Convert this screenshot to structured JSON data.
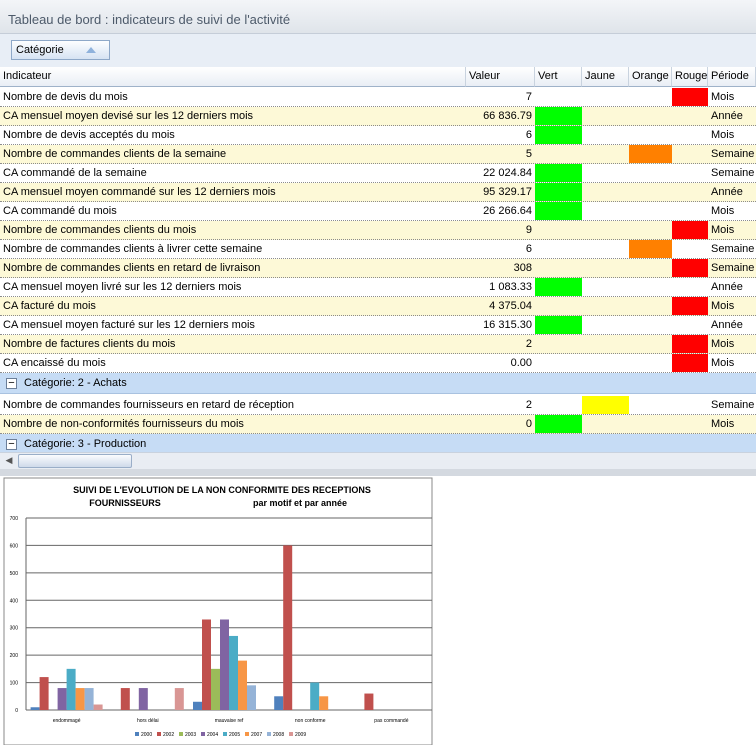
{
  "header": {
    "title": "Tableau de bord : indicateurs de suivi de l'activité"
  },
  "group_panel": {
    "button": "Catégorie"
  },
  "table": {
    "columns": [
      "Indicateur",
      "Valeur",
      "Vert",
      "Jaune",
      "Orange",
      "Rouge",
      "Période"
    ],
    "status_colors": {
      "Vert": "#00ff00",
      "Jaune": "#ffff00",
      "Orange": "#ff8000",
      "Rouge": "#ff0000"
    },
    "groups": [
      {
        "rows": [
          {
            "indicator": "Nombre de devis du mois",
            "value": "7",
            "status": "Rouge",
            "period": "Mois"
          },
          {
            "indicator": "CA mensuel moyen devisé sur les 12 derniers mois",
            "value": "66 836.79",
            "status": "Vert",
            "period": "Année"
          },
          {
            "indicator": "Nombre de devis acceptés du mois",
            "value": "6",
            "status": "Vert",
            "period": "Mois"
          },
          {
            "indicator": "Nombre de commandes clients de la semaine",
            "value": "5",
            "status": "Orange",
            "period": "Semaine"
          },
          {
            "indicator": "CA commandé de la semaine",
            "value": "22 024.84",
            "status": "Vert",
            "period": "Semaine"
          },
          {
            "indicator": "CA mensuel moyen commandé sur les 12 derniers mois",
            "value": "95 329.17",
            "status": "Vert",
            "period": "Année"
          },
          {
            "indicator": "CA commandé du mois",
            "value": "26 266.64",
            "status": "Vert",
            "period": "Mois"
          },
          {
            "indicator": "Nombre de commandes clients du mois",
            "value": "9",
            "status": "Rouge",
            "period": "Mois"
          },
          {
            "indicator": "Nombre de commandes clients à livrer cette semaine",
            "value": "6",
            "status": "Orange",
            "period": "Semaine"
          },
          {
            "indicator": "Nombre de commandes clients en retard de livraison",
            "value": "308",
            "status": "Rouge",
            "period": "Semaine"
          },
          {
            "indicator": "CA mensuel moyen livré sur les 12 derniers mois",
            "value": "1 083.33",
            "status": "Vert",
            "period": "Année"
          },
          {
            "indicator": "CA facturé du mois",
            "value": "4 375.04",
            "status": "Rouge",
            "period": "Mois"
          },
          {
            "indicator": "CA mensuel moyen facturé sur les 12 derniers mois",
            "value": "16 315.30",
            "status": "Vert",
            "period": "Année"
          },
          {
            "indicator": "Nombre de factures clients du mois",
            "value": "2",
            "status": "Rouge",
            "period": "Mois"
          },
          {
            "indicator": "CA encaissé du mois",
            "value": "0.00",
            "status": "Rouge",
            "period": "Mois"
          }
        ]
      },
      {
        "label": "Catégorie: 2 - Achats",
        "rows": [
          {
            "indicator": "Nombre de commandes fournisseurs en retard de réception",
            "value": "2",
            "status": "Jaune",
            "period": "Semaine"
          },
          {
            "indicator": "Nombre de non-conformités fournisseurs du mois",
            "value": "0",
            "status": "Vert",
            "period": "Mois"
          }
        ]
      },
      {
        "label": "Catégorie: 3 - Production",
        "rows": []
      }
    ]
  },
  "chart_data": {
    "type": "bar",
    "title": [
      "SUIVI DE L'EVOLUTION DE LA NON CONFORMITE DES RECEPTIONS",
      "FOURNISSEURS"
    ],
    "subtitle": "par motif et par année",
    "categories": [
      "endommagé",
      "hors délai",
      "mauvaise ref",
      "non conforme",
      "pas commandé"
    ],
    "series": [
      {
        "name": "2000",
        "color": "#4f81bd",
        "values": [
          10,
          0,
          30,
          50,
          0
        ]
      },
      {
        "name": "2002",
        "color": "#c0504d",
        "values": [
          120,
          80,
          330,
          600,
          60
        ]
      },
      {
        "name": "2003",
        "color": "#9bbb59",
        "values": [
          0,
          0,
          150,
          0,
          0
        ]
      },
      {
        "name": "2004",
        "color": "#8064a2",
        "values": [
          80,
          80,
          330,
          0,
          0
        ]
      },
      {
        "name": "2005",
        "color": "#4bacc6",
        "values": [
          150,
          0,
          270,
          100,
          0
        ]
      },
      {
        "name": "2007",
        "color": "#f79646",
        "values": [
          80,
          0,
          180,
          50,
          0
        ]
      },
      {
        "name": "2008",
        "color": "#95b3d7",
        "values": [
          80,
          0,
          90,
          0,
          0
        ]
      },
      {
        "name": "2009",
        "color": "#d99694",
        "values": [
          20,
          80,
          0,
          0,
          0
        ]
      }
    ],
    "ylim": [
      0,
      700
    ],
    "yticks": [
      0,
      100,
      200,
      300,
      400,
      500,
      600,
      700
    ],
    "grid": true
  }
}
